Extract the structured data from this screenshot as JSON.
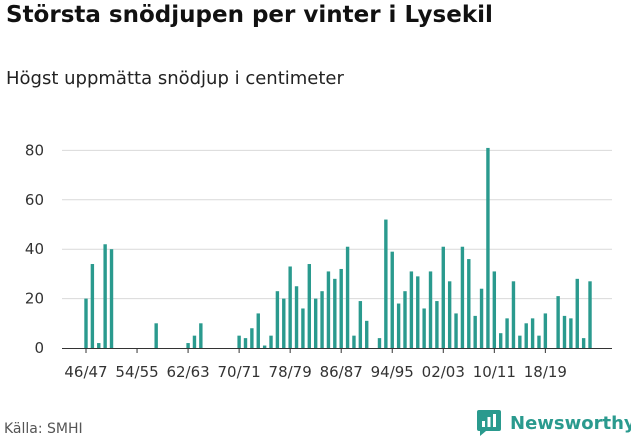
{
  "header": {
    "title": "Största snödjupen per vinter i Lysekil",
    "subtitle": "Högst uppmätta snödjup i centimeter"
  },
  "footer": {
    "source": "Källa: SMHI",
    "brand": "Newsworthy",
    "brand_icon": "bar-chart-speech-bubble-icon"
  },
  "colors": {
    "bar": "#2a9a8e",
    "brand": "#2a9a8e",
    "grid": "#d9d9d9",
    "text": "#333333"
  },
  "chart_data": {
    "type": "bar",
    "title": "Största snödjupen per vinter i Lysekil",
    "subtitle": "Högst uppmätta snödjup i centimeter",
    "xlabel": "",
    "ylabel": "",
    "ylim": [
      0,
      85
    ],
    "yticks": [
      0,
      20,
      40,
      60,
      80
    ],
    "grid": true,
    "legend": "none",
    "x_tick_labels": [
      "46/47",
      "54/55",
      "62/63",
      "70/71",
      "78/79",
      "86/87",
      "94/95",
      "02/03",
      "10/11",
      "18/19"
    ],
    "categories": [
      "46/47",
      "47/48",
      "48/49",
      "49/50",
      "50/51",
      "51/52",
      "52/53",
      "53/54",
      "54/55",
      "55/56",
      "56/57",
      "57/58",
      "58/59",
      "59/60",
      "60/61",
      "61/62",
      "62/63",
      "63/64",
      "64/65",
      "65/66",
      "66/67",
      "67/68",
      "68/69",
      "69/70",
      "70/71",
      "71/72",
      "72/73",
      "73/74",
      "74/75",
      "75/76",
      "76/77",
      "77/78",
      "78/79",
      "79/80",
      "80/81",
      "81/82",
      "82/83",
      "83/84",
      "84/85",
      "85/86",
      "86/87",
      "87/88",
      "88/89",
      "89/90",
      "90/91",
      "91/92",
      "92/93",
      "93/94",
      "94/95",
      "95/96",
      "96/97",
      "97/98",
      "98/99",
      "99/00",
      "00/01",
      "01/02",
      "02/03",
      "03/04",
      "04/05",
      "05/06",
      "06/07",
      "07/08",
      "08/09",
      "09/10",
      "10/11",
      "11/12",
      "12/13",
      "13/14",
      "14/15",
      "15/16",
      "16/17",
      "17/18",
      "18/19",
      "19/20",
      "20/21",
      "21/22",
      "22/23",
      "23/24",
      "24/25",
      "25/26"
    ],
    "values": [
      20,
      34,
      2,
      42,
      40,
      null,
      null,
      null,
      null,
      null,
      null,
      10,
      null,
      null,
      null,
      null,
      2,
      5,
      10,
      null,
      null,
      null,
      null,
      null,
      5,
      4,
      8,
      14,
      1,
      5,
      23,
      20,
      33,
      25,
      16,
      34,
      20,
      23,
      31,
      28,
      32,
      41,
      5,
      19,
      11,
      null,
      4,
      52,
      39,
      18,
      23,
      31,
      29,
      16,
      31,
      19,
      41,
      27,
      14,
      41,
      36,
      13,
      24,
      81,
      31,
      6,
      12,
      27,
      5,
      10,
      12,
      5,
      14,
      null,
      21,
      13,
      12,
      28,
      4,
      27
    ]
  }
}
